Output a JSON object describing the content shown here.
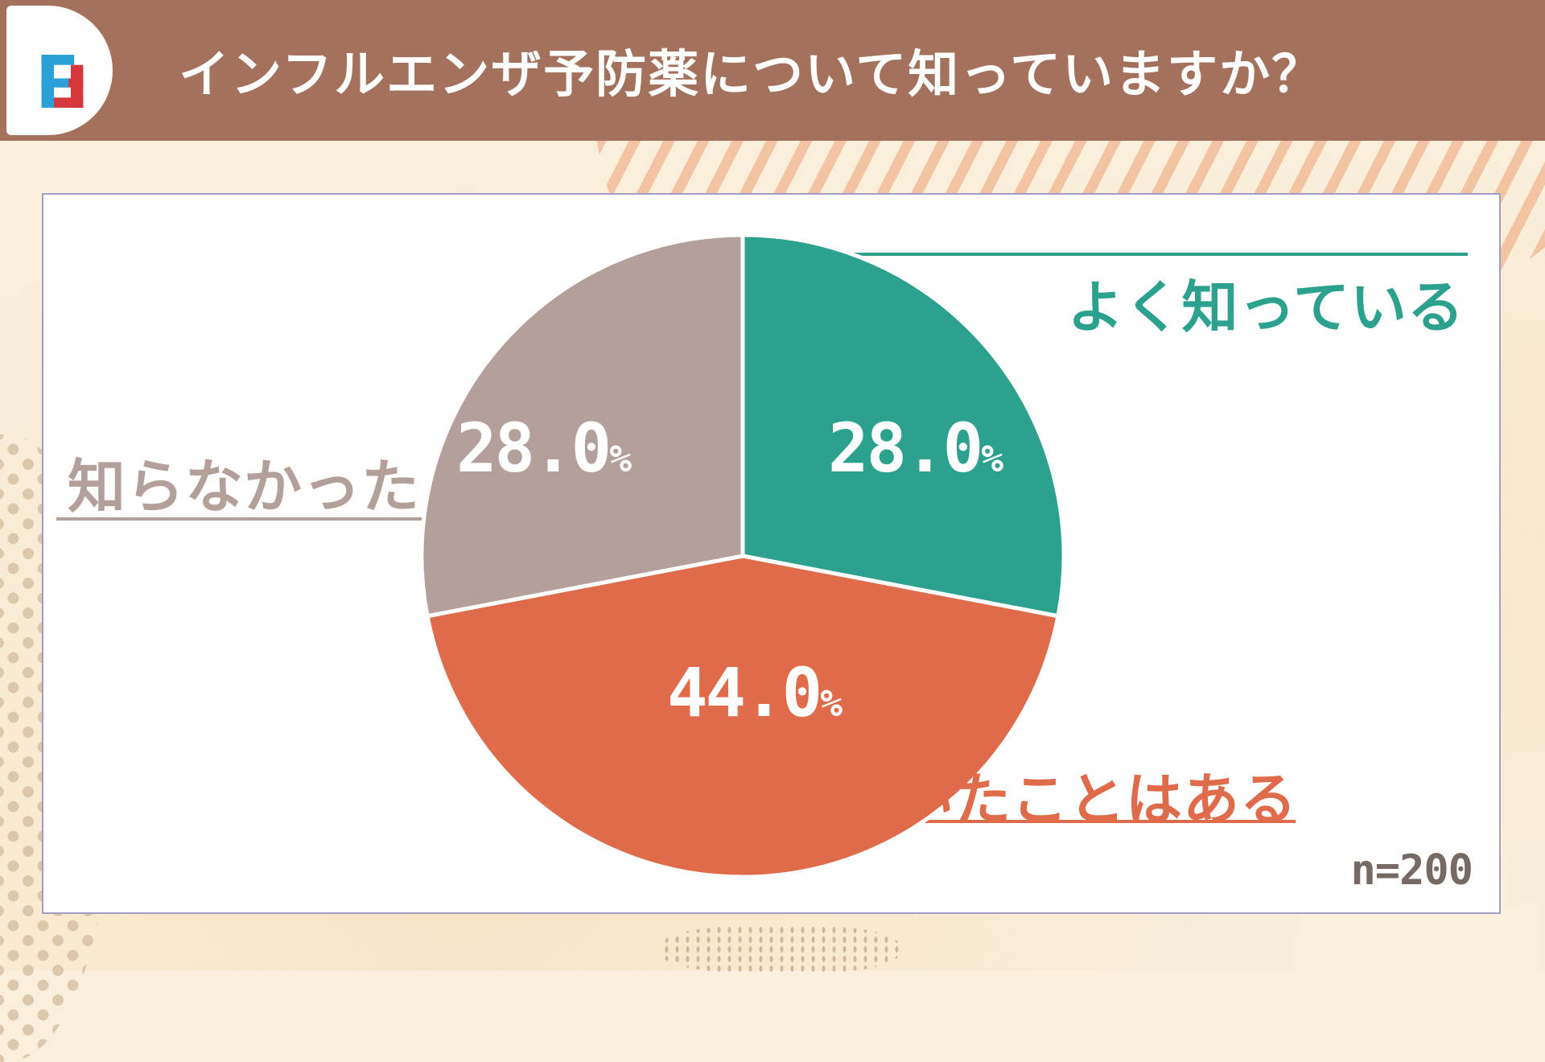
{
  "header": {
    "title": "インフルエンザ予防薬について知っていますか？",
    "bg_color": "#A3715C",
    "logo": {
      "name": "fg-logo",
      "blue": "#2B9FD8",
      "red": "#D6373C"
    }
  },
  "panel": {
    "bg_color": "#FFFFFF",
    "border_color": "#A39CC8"
  },
  "background": {
    "base_color": "#F9EFDB",
    "stripe_color": "#F1B690",
    "dot_color": "#D8C2A4"
  },
  "chart_data": {
    "type": "pie",
    "title": "インフルエンザ予防薬について知っていますか？",
    "sample_size_label": "n=200",
    "start_angle_deg": 0,
    "direction": "clockwise",
    "value_unit": "%",
    "label_text_color": "#FFFFFF",
    "legend_position": "callout-labels",
    "slices": [
      {
        "label": "よく知っている",
        "value": 28.0,
        "display": "28.0",
        "color": "#2CA28E"
      },
      {
        "label": "聞いたことはある",
        "value": 44.0,
        "display": "44.0",
        "color": "#DF6B4A"
      },
      {
        "label": "知らなかった",
        "value": 28.0,
        "display": "28.0",
        "color": "#B4A09B"
      }
    ]
  }
}
